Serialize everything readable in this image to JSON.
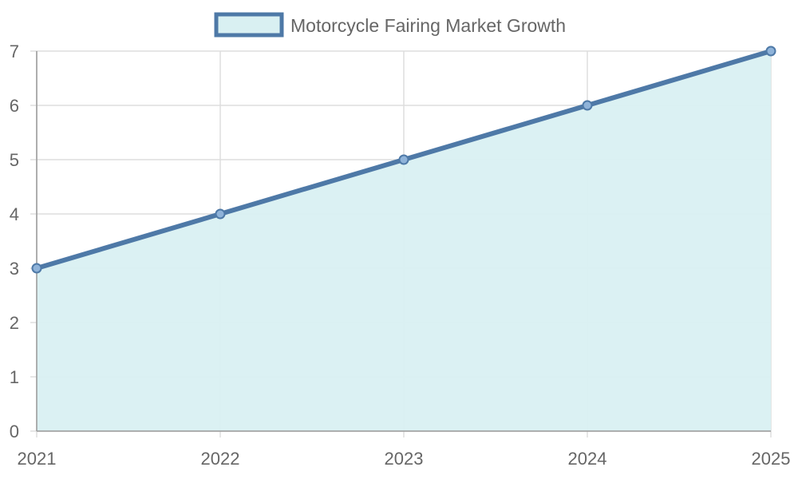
{
  "chart_data": {
    "type": "area",
    "legend": {
      "placement": "top",
      "series_name": "Motorcycle Fairing Market Growth"
    },
    "categories": [
      "2021",
      "2022",
      "2023",
      "2024",
      "2025"
    ],
    "series": [
      {
        "name": "Motorcycle Fairing Market Growth",
        "values": [
          3,
          4,
          5,
          6,
          7
        ]
      }
    ],
    "ylim": [
      0,
      7
    ],
    "yticks": [
      0,
      1,
      2,
      3,
      4,
      5,
      6,
      7
    ],
    "grid": true,
    "colors": {
      "line": "#4e79a7",
      "fill": "#d9f0f2",
      "point_fill": "#8fb3d9"
    }
  }
}
